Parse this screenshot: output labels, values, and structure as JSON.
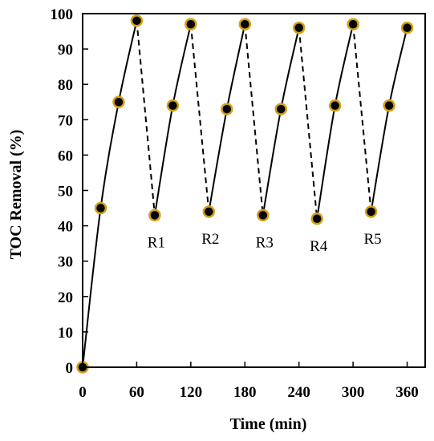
{
  "chart_data": {
    "type": "scatter",
    "title": "",
    "xlabel": "Time (min)",
    "ylabel": "TOC Removal (%)",
    "xlim": [
      0,
      380
    ],
    "ylim": [
      0,
      100
    ],
    "xticks": [
      0,
      60,
      120,
      180,
      240,
      300,
      360
    ],
    "yticks": [
      0,
      10,
      20,
      30,
      40,
      50,
      60,
      70,
      80,
      90,
      100
    ],
    "grid": false,
    "legend": "none",
    "marker_fill": "#000000",
    "marker_edge": "#d4a017",
    "line_color": "#000000",
    "cycles": [
      {
        "points": [
          [
            0,
            0
          ],
          [
            20,
            45
          ],
          [
            40,
            75
          ],
          [
            60,
            98
          ]
        ]
      },
      {
        "label": "R1",
        "points": [
          [
            80,
            43
          ],
          [
            100,
            74
          ],
          [
            120,
            97
          ]
        ]
      },
      {
        "label": "R2",
        "points": [
          [
            140,
            44
          ],
          [
            160,
            73
          ],
          [
            180,
            97
          ]
        ]
      },
      {
        "label": "R3",
        "points": [
          [
            200,
            43
          ],
          [
            220,
            73
          ],
          [
            240,
            96
          ]
        ]
      },
      {
        "label": "R4",
        "points": [
          [
            260,
            42
          ],
          [
            280,
            74
          ],
          [
            300,
            97
          ]
        ]
      },
      {
        "label": "R5",
        "points": [
          [
            320,
            44
          ],
          [
            340,
            74
          ],
          [
            360,
            96
          ]
        ]
      }
    ]
  }
}
